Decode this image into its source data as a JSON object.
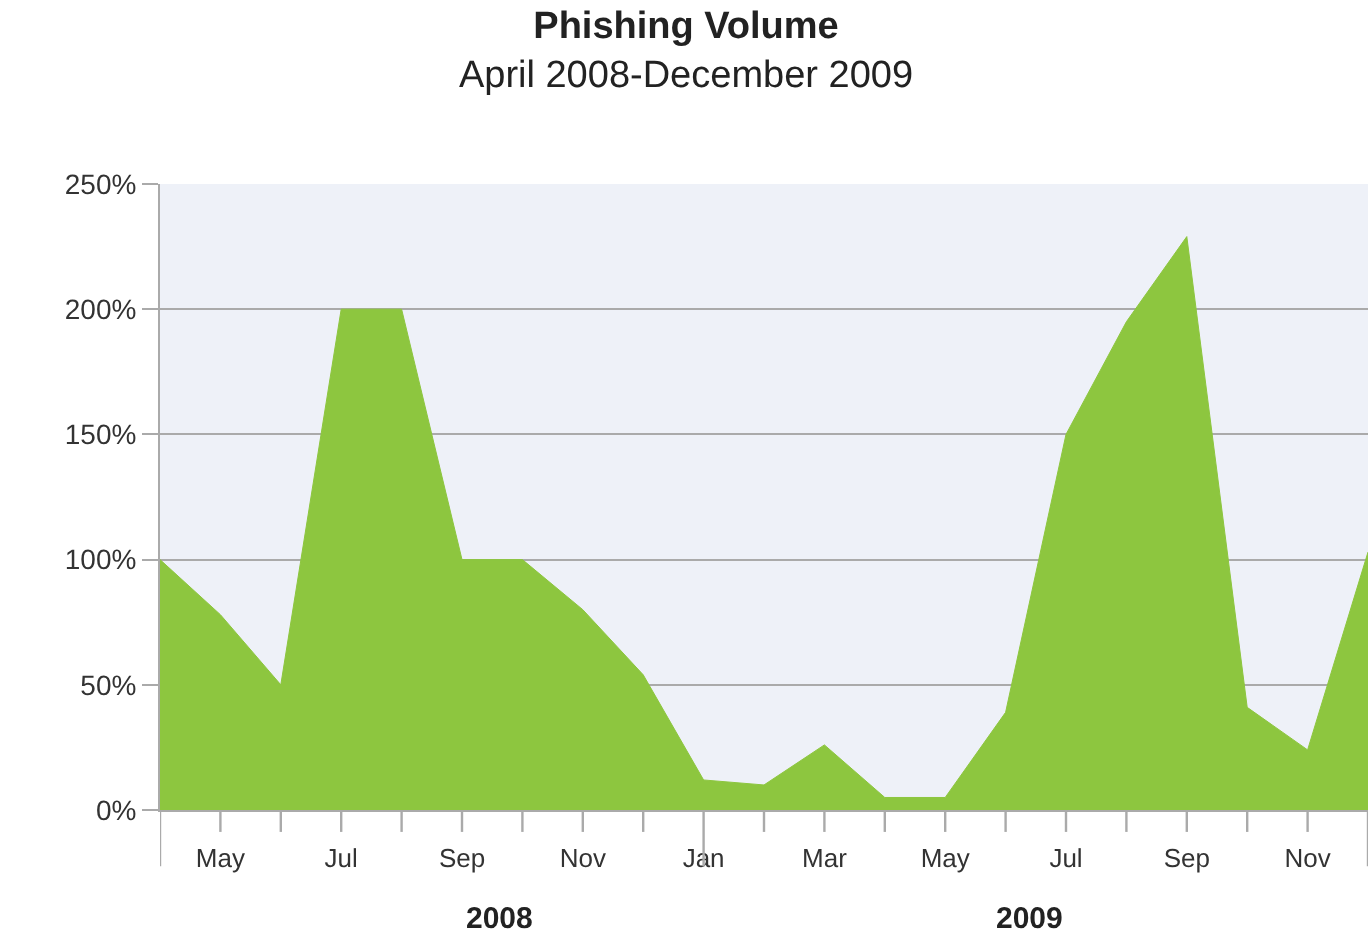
{
  "chart_data": {
    "type": "area",
    "title": "Phishing Volume",
    "subtitle": "April 2008-December 2009",
    "categories": [
      null,
      "May",
      null,
      "Jul",
      null,
      "Sep",
      null,
      "Nov",
      null,
      "Jan",
      null,
      "Mar",
      null,
      "May",
      null,
      "Jul",
      null,
      "Sep",
      null,
      "Nov",
      null
    ],
    "values": [
      100,
      78,
      50,
      200,
      200,
      100,
      100,
      80,
      54,
      12,
      10,
      26,
      5,
      5,
      39,
      150,
      195,
      229,
      41,
      24,
      103
    ],
    "color": "#8dc63f",
    "ylim": [
      0,
      250
    ],
    "yticks": [
      {
        "value": 0,
        "label": "0%"
      },
      {
        "value": 50,
        "label": "50%"
      },
      {
        "value": 100,
        "label": "100%"
      },
      {
        "value": 150,
        "label": "150%"
      },
      {
        "value": 200,
        "label": "200%"
      },
      {
        "value": 250,
        "label": "250%"
      }
    ],
    "grid": "y",
    "annotations": [
      "2008",
      "2009"
    ]
  }
}
